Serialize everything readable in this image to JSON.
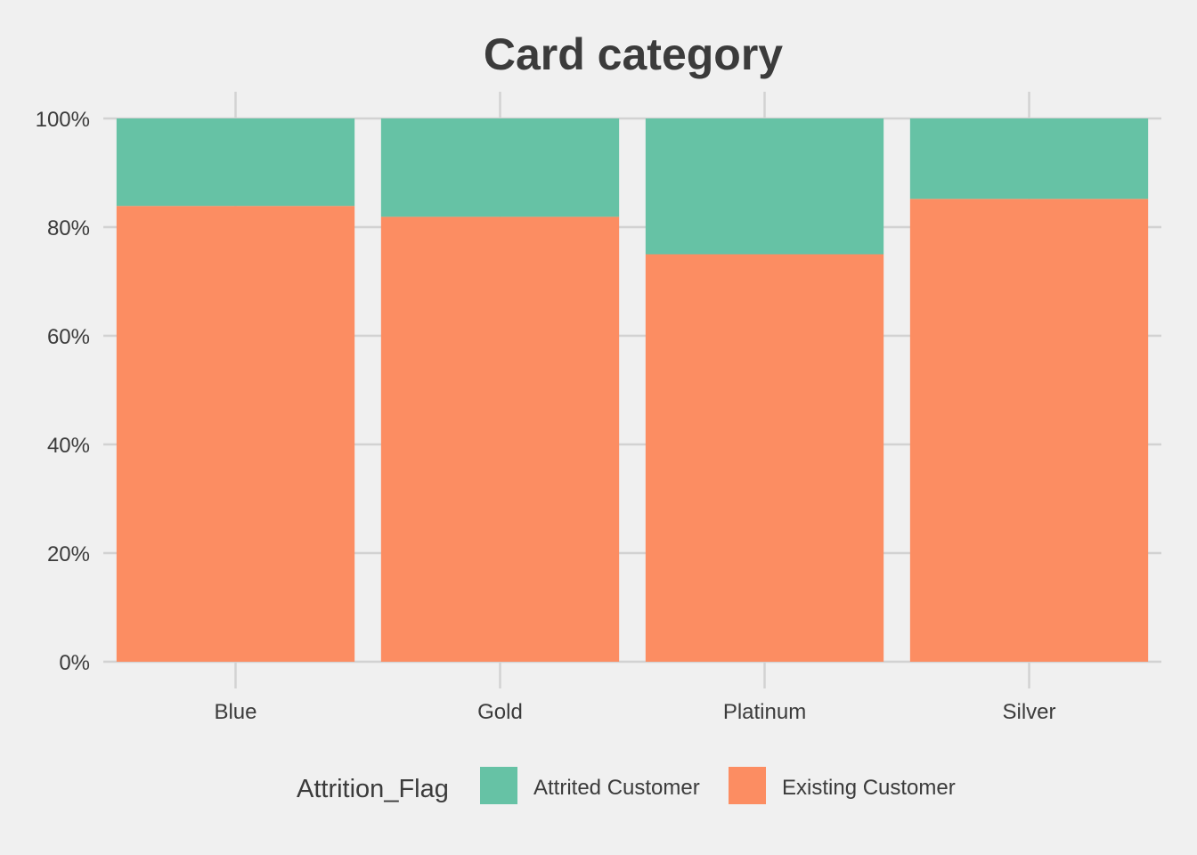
{
  "chart_data": {
    "type": "bar",
    "stacked": "percent",
    "title": "Card category",
    "xlabel": "",
    "ylabel": "",
    "ylim": [
      0,
      1
    ],
    "y_tick_values": [
      0,
      0.2,
      0.4,
      0.6,
      0.8,
      1.0
    ],
    "y_tick_labels": [
      "0%",
      "20%",
      "40%",
      "60%",
      "80%",
      "100%"
    ],
    "categories": [
      "Blue",
      "Gold",
      "Platinum",
      "Silver"
    ],
    "series": [
      {
        "name": "Existing Customer",
        "color": "#fc8d62",
        "values": [
          0.839,
          0.819,
          0.75,
          0.852
        ]
      },
      {
        "name": "Attrited Customer",
        "color": "#66c2a5",
        "values": [
          0.161,
          0.181,
          0.25,
          0.148
        ]
      }
    ],
    "legend": {
      "title": "Attrition_Flag",
      "position": "bottom",
      "entries": [
        "Attrited Customer",
        "Existing Customer"
      ]
    },
    "grid": true,
    "background": "#f0f0f0",
    "grid_color": "#d2d2d2"
  }
}
